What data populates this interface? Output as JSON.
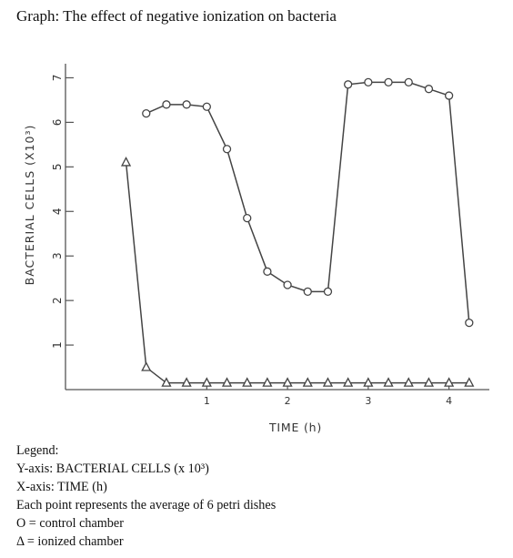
{
  "title": "Graph: The effect of negative ionization on bacteria",
  "chart_data": {
    "type": "line",
    "ylabel": "BACTERIAL CELLS (X10³)",
    "xlabel": "TIME (h)",
    "xlim": [
      -0.75,
      4.5
    ],
    "ylim": [
      0,
      7.5
    ],
    "x_ticks": [
      1,
      2,
      3,
      4
    ],
    "y_ticks": [
      1,
      2,
      3,
      4,
      5,
      6,
      7
    ],
    "grid": false,
    "series": [
      {
        "marker": "circle",
        "points": [
          [
            0.25,
            6.2
          ],
          [
            0.5,
            6.4
          ],
          [
            0.75,
            6.4
          ],
          [
            1.0,
            6.35
          ],
          [
            1.25,
            5.4
          ],
          [
            1.5,
            3.85
          ],
          [
            1.75,
            2.65
          ],
          [
            2.0,
            2.35
          ],
          [
            2.25,
            2.2
          ],
          [
            2.5,
            2.2
          ],
          [
            2.75,
            6.85
          ],
          [
            3.0,
            6.9
          ],
          [
            3.25,
            6.9
          ],
          [
            3.5,
            6.9
          ],
          [
            3.75,
            6.75
          ],
          [
            4.0,
            6.6
          ],
          [
            4.25,
            1.5
          ]
        ]
      },
      {
        "marker": "triangle",
        "points": [
          [
            0.0,
            5.1
          ],
          [
            0.25,
            0.5
          ],
          [
            0.5,
            0.15
          ],
          [
            0.75,
            0.15
          ],
          [
            1.0,
            0.15
          ],
          [
            1.25,
            0.15
          ],
          [
            1.5,
            0.15
          ],
          [
            1.75,
            0.15
          ],
          [
            2.0,
            0.15
          ],
          [
            2.25,
            0.15
          ],
          [
            2.5,
            0.15
          ],
          [
            2.75,
            0.15
          ],
          [
            3.0,
            0.15
          ],
          [
            3.25,
            0.15
          ],
          [
            3.5,
            0.15
          ],
          [
            3.75,
            0.15
          ],
          [
            4.0,
            0.15
          ],
          [
            4.25,
            0.15
          ]
        ]
      }
    ]
  },
  "legend": {
    "heading": "Legend:",
    "lines": [
      "Y-axis: BACTERIAL CELLS (x 10³)",
      "X-axis: TIME (h)",
      "Each point represents the average of 6 petri dishes",
      "O = control chamber",
      "Δ = ionized chamber"
    ]
  }
}
